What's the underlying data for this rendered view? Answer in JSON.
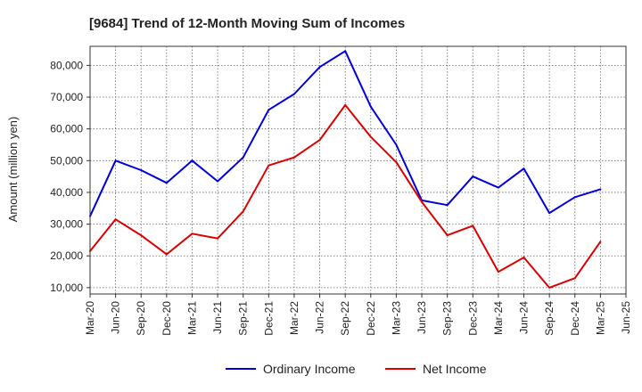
{
  "chart_data": {
    "type": "line",
    "title": "[9684]  Trend of 12-Month Moving Sum of Incomes",
    "xlabel": "",
    "ylabel": "Amount (million yen)",
    "ylim": [
      8000,
      86000
    ],
    "yticks": [
      10000,
      20000,
      30000,
      40000,
      50000,
      60000,
      70000,
      80000
    ],
    "ytick_labels": [
      "10,000",
      "20,000",
      "30,000",
      "40,000",
      "50,000",
      "60,000",
      "70,000",
      "80,000"
    ],
    "categories": [
      "Mar-20",
      "Jun-20",
      "Sep-20",
      "Dec-20",
      "Mar-21",
      "Jun-21",
      "Sep-21",
      "Dec-21",
      "Mar-22",
      "Jun-22",
      "Sep-22",
      "Dec-22",
      "Mar-23",
      "Jun-23",
      "Sep-23",
      "Dec-23",
      "Mar-24",
      "Jun-24",
      "Sep-24",
      "Dec-24",
      "Mar-25",
      "Jun-25"
    ],
    "grid": true,
    "legend_position": "bottom",
    "series": [
      {
        "name": "Ordinary Income",
        "color": "#0000dd",
        "values": [
          32500,
          50000,
          47000,
          43000,
          50000,
          43500,
          51000,
          66000,
          71000,
          79500,
          84500,
          67000,
          55000,
          37500,
          36000,
          45000,
          41500,
          47500,
          33500,
          38500,
          41000,
          null
        ]
      },
      {
        "name": "Net Income",
        "color": "#dd0000",
        "values": [
          21500,
          31500,
          26500,
          20500,
          27000,
          25500,
          34000,
          48500,
          51000,
          56500,
          67500,
          57500,
          49500,
          37000,
          26500,
          29500,
          15000,
          19500,
          10000,
          13000,
          24500,
          null
        ]
      }
    ]
  }
}
